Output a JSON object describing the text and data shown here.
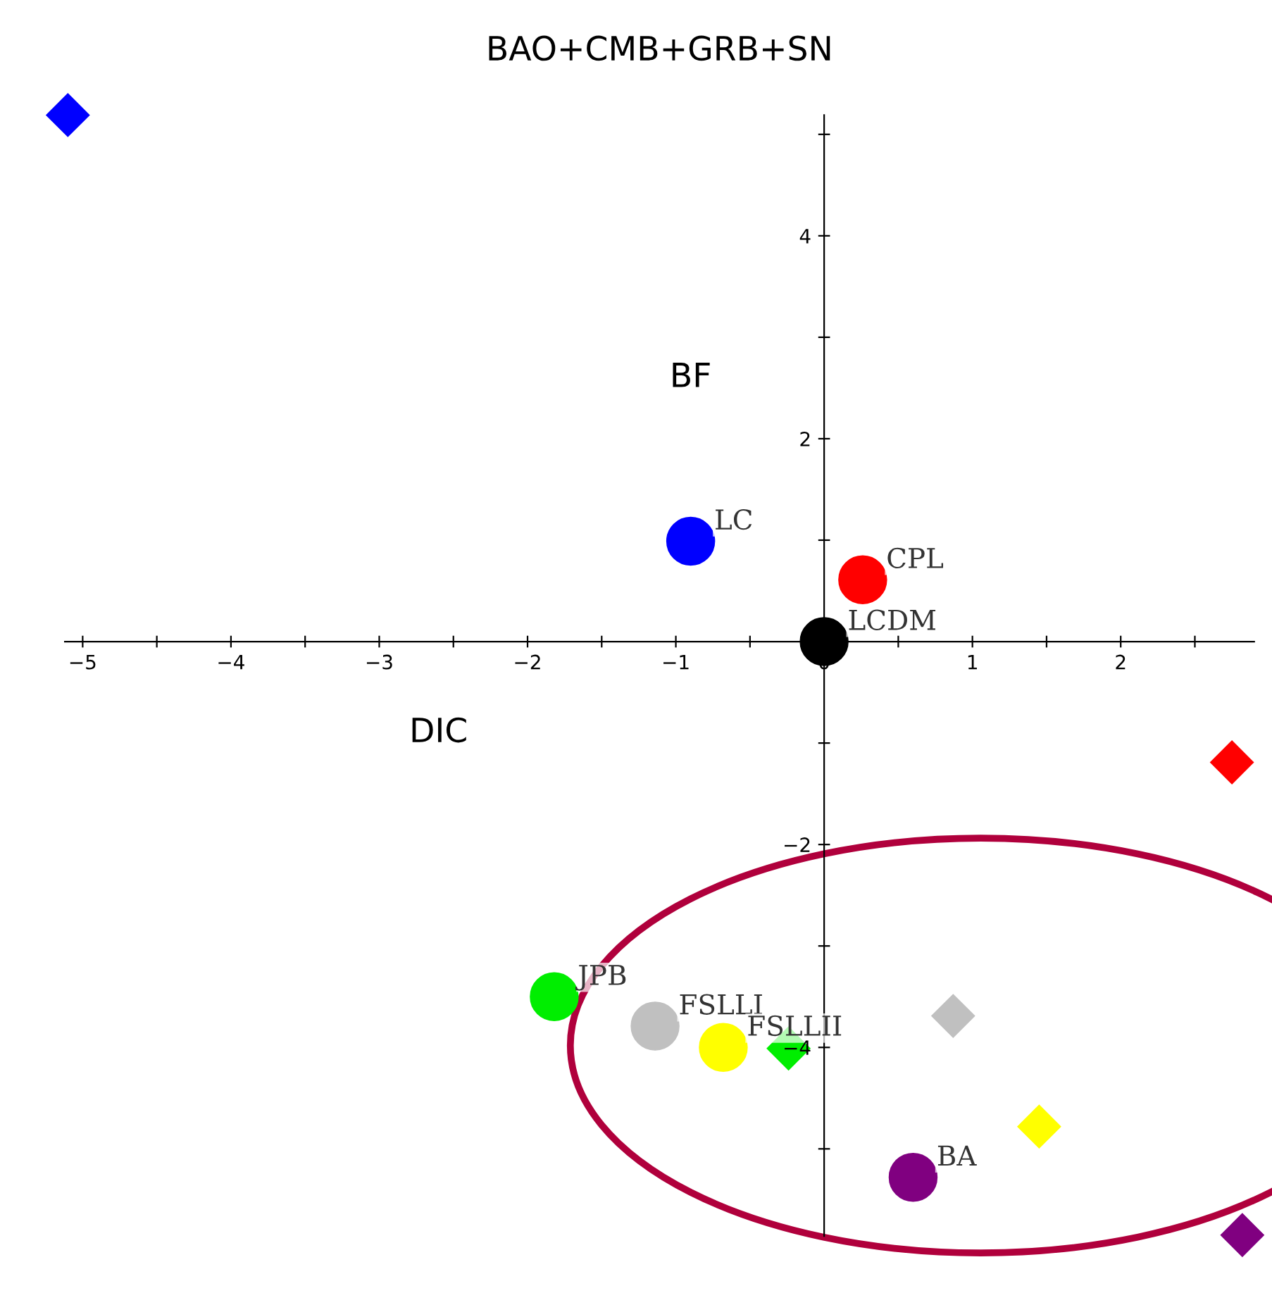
{
  "chart_data": {
    "type": "scatter",
    "title": "BAO+CMB+GRB+SN",
    "xlabel": "DIC",
    "ylabel": "BF",
    "xlim": [
      -5.12,
      2.9
    ],
    "ylim": [
      -5.86,
      5.19
    ],
    "xticks": [
      -5,
      {
        "value": -4.5,
        "label": null
      },
      -4,
      {
        "value": -3.5,
        "label": null
      },
      -3,
      {
        "value": -2.5,
        "label": null
      },
      -2,
      {
        "value": -1.5,
        "label": null
      },
      -1,
      {
        "value": -0.5,
        "label": null
      },
      0,
      {
        "value": 0.5,
        "label": null
      },
      1,
      {
        "value": 1.5,
        "label": null
      },
      2,
      {
        "value": 2.5,
        "label": null
      }
    ],
    "yticks": [
      {
        "value": -5,
        "label": null
      },
      -4,
      {
        "value": -3,
        "label": null
      },
      -2,
      {
        "value": -1,
        "label": null
      },
      {
        "value": 1,
        "label": null
      },
      2,
      {
        "value": 3,
        "label": null
      },
      4,
      {
        "value": 5,
        "label": null
      }
    ],
    "grid": false,
    "legend": false,
    "series": [
      {
        "name": "LC",
        "color": "#0000ff",
        "marker": "circle",
        "x": [
          -0.9
        ],
        "values": [
          0.99
        ]
      },
      {
        "name": "CPL",
        "color": "#ff0000",
        "marker": "circle",
        "x": [
          0.26
        ],
        "values": [
          0.61
        ]
      },
      {
        "name": "LCDM",
        "color": "#000000",
        "marker": "circle",
        "x": [
          0
        ],
        "values": [
          0
        ]
      },
      {
        "name": "JPB",
        "color": "#00ee00",
        "marker": "circle",
        "x": [
          -1.82
        ],
        "values": [
          -3.5
        ]
      },
      {
        "name": "FSLLI",
        "color": "#c0c0c0",
        "marker": "circle",
        "x": [
          -1.14
        ],
        "values": [
          -3.79
        ]
      },
      {
        "name": "FSLLII",
        "color": "#ffff00",
        "marker": "circle",
        "x": [
          -0.68
        ],
        "values": [
          -4.0
        ]
      },
      {
        "name": "BA",
        "color": "#800080",
        "marker": "circle",
        "x": [
          0.6
        ],
        "values": [
          -5.28
        ]
      },
      {
        "color": "#0000ff",
        "marker": "diamond",
        "x": [
          -5.1
        ],
        "values": [
          5.19
        ]
      },
      {
        "color": "#ff0000",
        "marker": "diamond",
        "x": [
          2.75
        ],
        "values": [
          -1.19
        ]
      },
      {
        "color": "#00ee00",
        "marker": "diamond",
        "x": [
          -0.24
        ],
        "values": [
          -4.01
        ]
      },
      {
        "color": "#c0c0c0",
        "marker": "diamond",
        "x": [
          0.87
        ],
        "values": [
          -3.69
        ]
      },
      {
        "color": "#ffff00",
        "marker": "diamond",
        "x": [
          1.45
        ],
        "values": [
          -4.78
        ]
      },
      {
        "color": "#800080",
        "marker": "diamond",
        "x": [
          2.82
        ],
        "values": [
          -5.85
        ]
      }
    ]
  }
}
